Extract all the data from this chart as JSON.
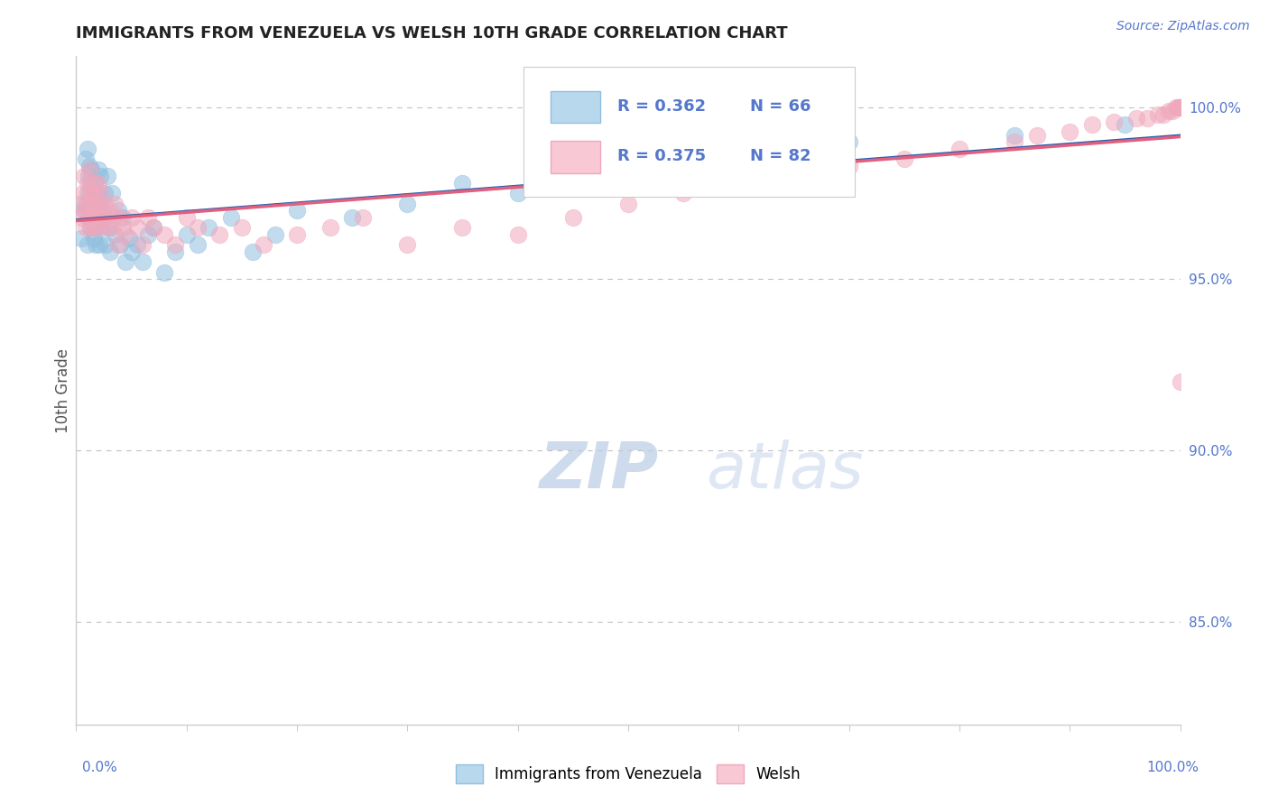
{
  "title": "IMMIGRANTS FROM VENEZUELA VS WELSH 10TH GRADE CORRELATION CHART",
  "source_text": "Source: ZipAtlas.com",
  "ylabel": "10th Grade",
  "right_yticklabels": [
    "85.0%",
    "90.0%",
    "95.0%",
    "100.0%"
  ],
  "right_yticks": [
    0.85,
    0.9,
    0.95,
    1.0
  ],
  "blue_color": "#90bfdf",
  "pink_color": "#f0a8bc",
  "blue_line_color": "#2060b0",
  "pink_line_color": "#e06080",
  "watermark_text": "ZIPatlas",
  "legend_blue_R": "R = 0.362",
  "legend_blue_N": "N = 66",
  "legend_pink_R": "R = 0.375",
  "legend_pink_N": "N = 82",
  "blue_scatter_x": [
    0.005,
    0.007,
    0.008,
    0.009,
    0.01,
    0.01,
    0.01,
    0.011,
    0.012,
    0.012,
    0.013,
    0.013,
    0.014,
    0.014,
    0.015,
    0.015,
    0.016,
    0.016,
    0.017,
    0.017,
    0.018,
    0.018,
    0.019,
    0.02,
    0.02,
    0.021,
    0.022,
    0.022,
    0.023,
    0.023,
    0.025,
    0.026,
    0.027,
    0.028,
    0.03,
    0.031,
    0.032,
    0.035,
    0.038,
    0.04,
    0.042,
    0.045,
    0.048,
    0.05,
    0.055,
    0.06,
    0.065,
    0.07,
    0.08,
    0.09,
    0.1,
    0.11,
    0.12,
    0.14,
    0.16,
    0.18,
    0.2,
    0.25,
    0.3,
    0.35,
    0.4,
    0.5,
    0.6,
    0.7,
    0.85,
    0.95
  ],
  "blue_scatter_y": [
    0.962,
    0.97,
    0.972,
    0.985,
    0.96,
    0.975,
    0.988,
    0.98,
    0.97,
    0.983,
    0.965,
    0.978,
    0.971,
    0.982,
    0.968,
    0.975,
    0.962,
    0.97,
    0.978,
    0.965,
    0.974,
    0.96,
    0.968,
    0.975,
    0.982,
    0.96,
    0.972,
    0.98,
    0.965,
    0.97,
    0.968,
    0.975,
    0.96,
    0.98,
    0.965,
    0.958,
    0.975,
    0.963,
    0.97,
    0.96,
    0.968,
    0.955,
    0.962,
    0.958,
    0.96,
    0.955,
    0.963,
    0.965,
    0.952,
    0.958,
    0.963,
    0.96,
    0.965,
    0.968,
    0.958,
    0.963,
    0.97,
    0.968,
    0.972,
    0.978,
    0.975,
    0.98,
    0.985,
    0.99,
    0.992,
    0.995
  ],
  "pink_scatter_x": [
    0.003,
    0.005,
    0.006,
    0.007,
    0.008,
    0.009,
    0.01,
    0.01,
    0.011,
    0.012,
    0.012,
    0.013,
    0.013,
    0.014,
    0.014,
    0.015,
    0.015,
    0.016,
    0.016,
    0.017,
    0.018,
    0.019,
    0.02,
    0.02,
    0.021,
    0.022,
    0.023,
    0.025,
    0.026,
    0.028,
    0.03,
    0.032,
    0.033,
    0.035,
    0.038,
    0.04,
    0.042,
    0.045,
    0.05,
    0.055,
    0.06,
    0.065,
    0.07,
    0.08,
    0.09,
    0.1,
    0.11,
    0.13,
    0.15,
    0.17,
    0.2,
    0.23,
    0.26,
    0.3,
    0.35,
    0.4,
    0.45,
    0.5,
    0.55,
    0.6,
    0.65,
    0.7,
    0.75,
    0.8,
    0.85,
    0.87,
    0.9,
    0.92,
    0.94,
    0.96,
    0.97,
    0.98,
    0.985,
    0.99,
    0.993,
    0.996,
    0.998,
    0.999,
    1.0,
    1.0,
    1.0,
    1.0
  ],
  "pink_scatter_y": [
    0.972,
    0.968,
    0.975,
    0.98,
    0.97,
    0.965,
    0.972,
    0.978,
    0.968,
    0.975,
    0.982,
    0.965,
    0.97,
    0.975,
    0.968,
    0.972,
    0.965,
    0.978,
    0.97,
    0.975,
    0.968,
    0.972,
    0.965,
    0.978,
    0.97,
    0.968,
    0.975,
    0.968,
    0.972,
    0.965,
    0.97,
    0.965,
    0.968,
    0.972,
    0.96,
    0.968,
    0.965,
    0.963,
    0.968,
    0.965,
    0.96,
    0.968,
    0.965,
    0.963,
    0.96,
    0.968,
    0.965,
    0.963,
    0.965,
    0.96,
    0.963,
    0.965,
    0.968,
    0.96,
    0.965,
    0.963,
    0.968,
    0.972,
    0.975,
    0.978,
    0.98,
    0.983,
    0.985,
    0.988,
    0.99,
    0.992,
    0.993,
    0.995,
    0.996,
    0.997,
    0.997,
    0.998,
    0.998,
    0.999,
    0.999,
    1.0,
    1.0,
    1.0,
    1.0,
    1.0,
    1.0,
    0.92
  ]
}
